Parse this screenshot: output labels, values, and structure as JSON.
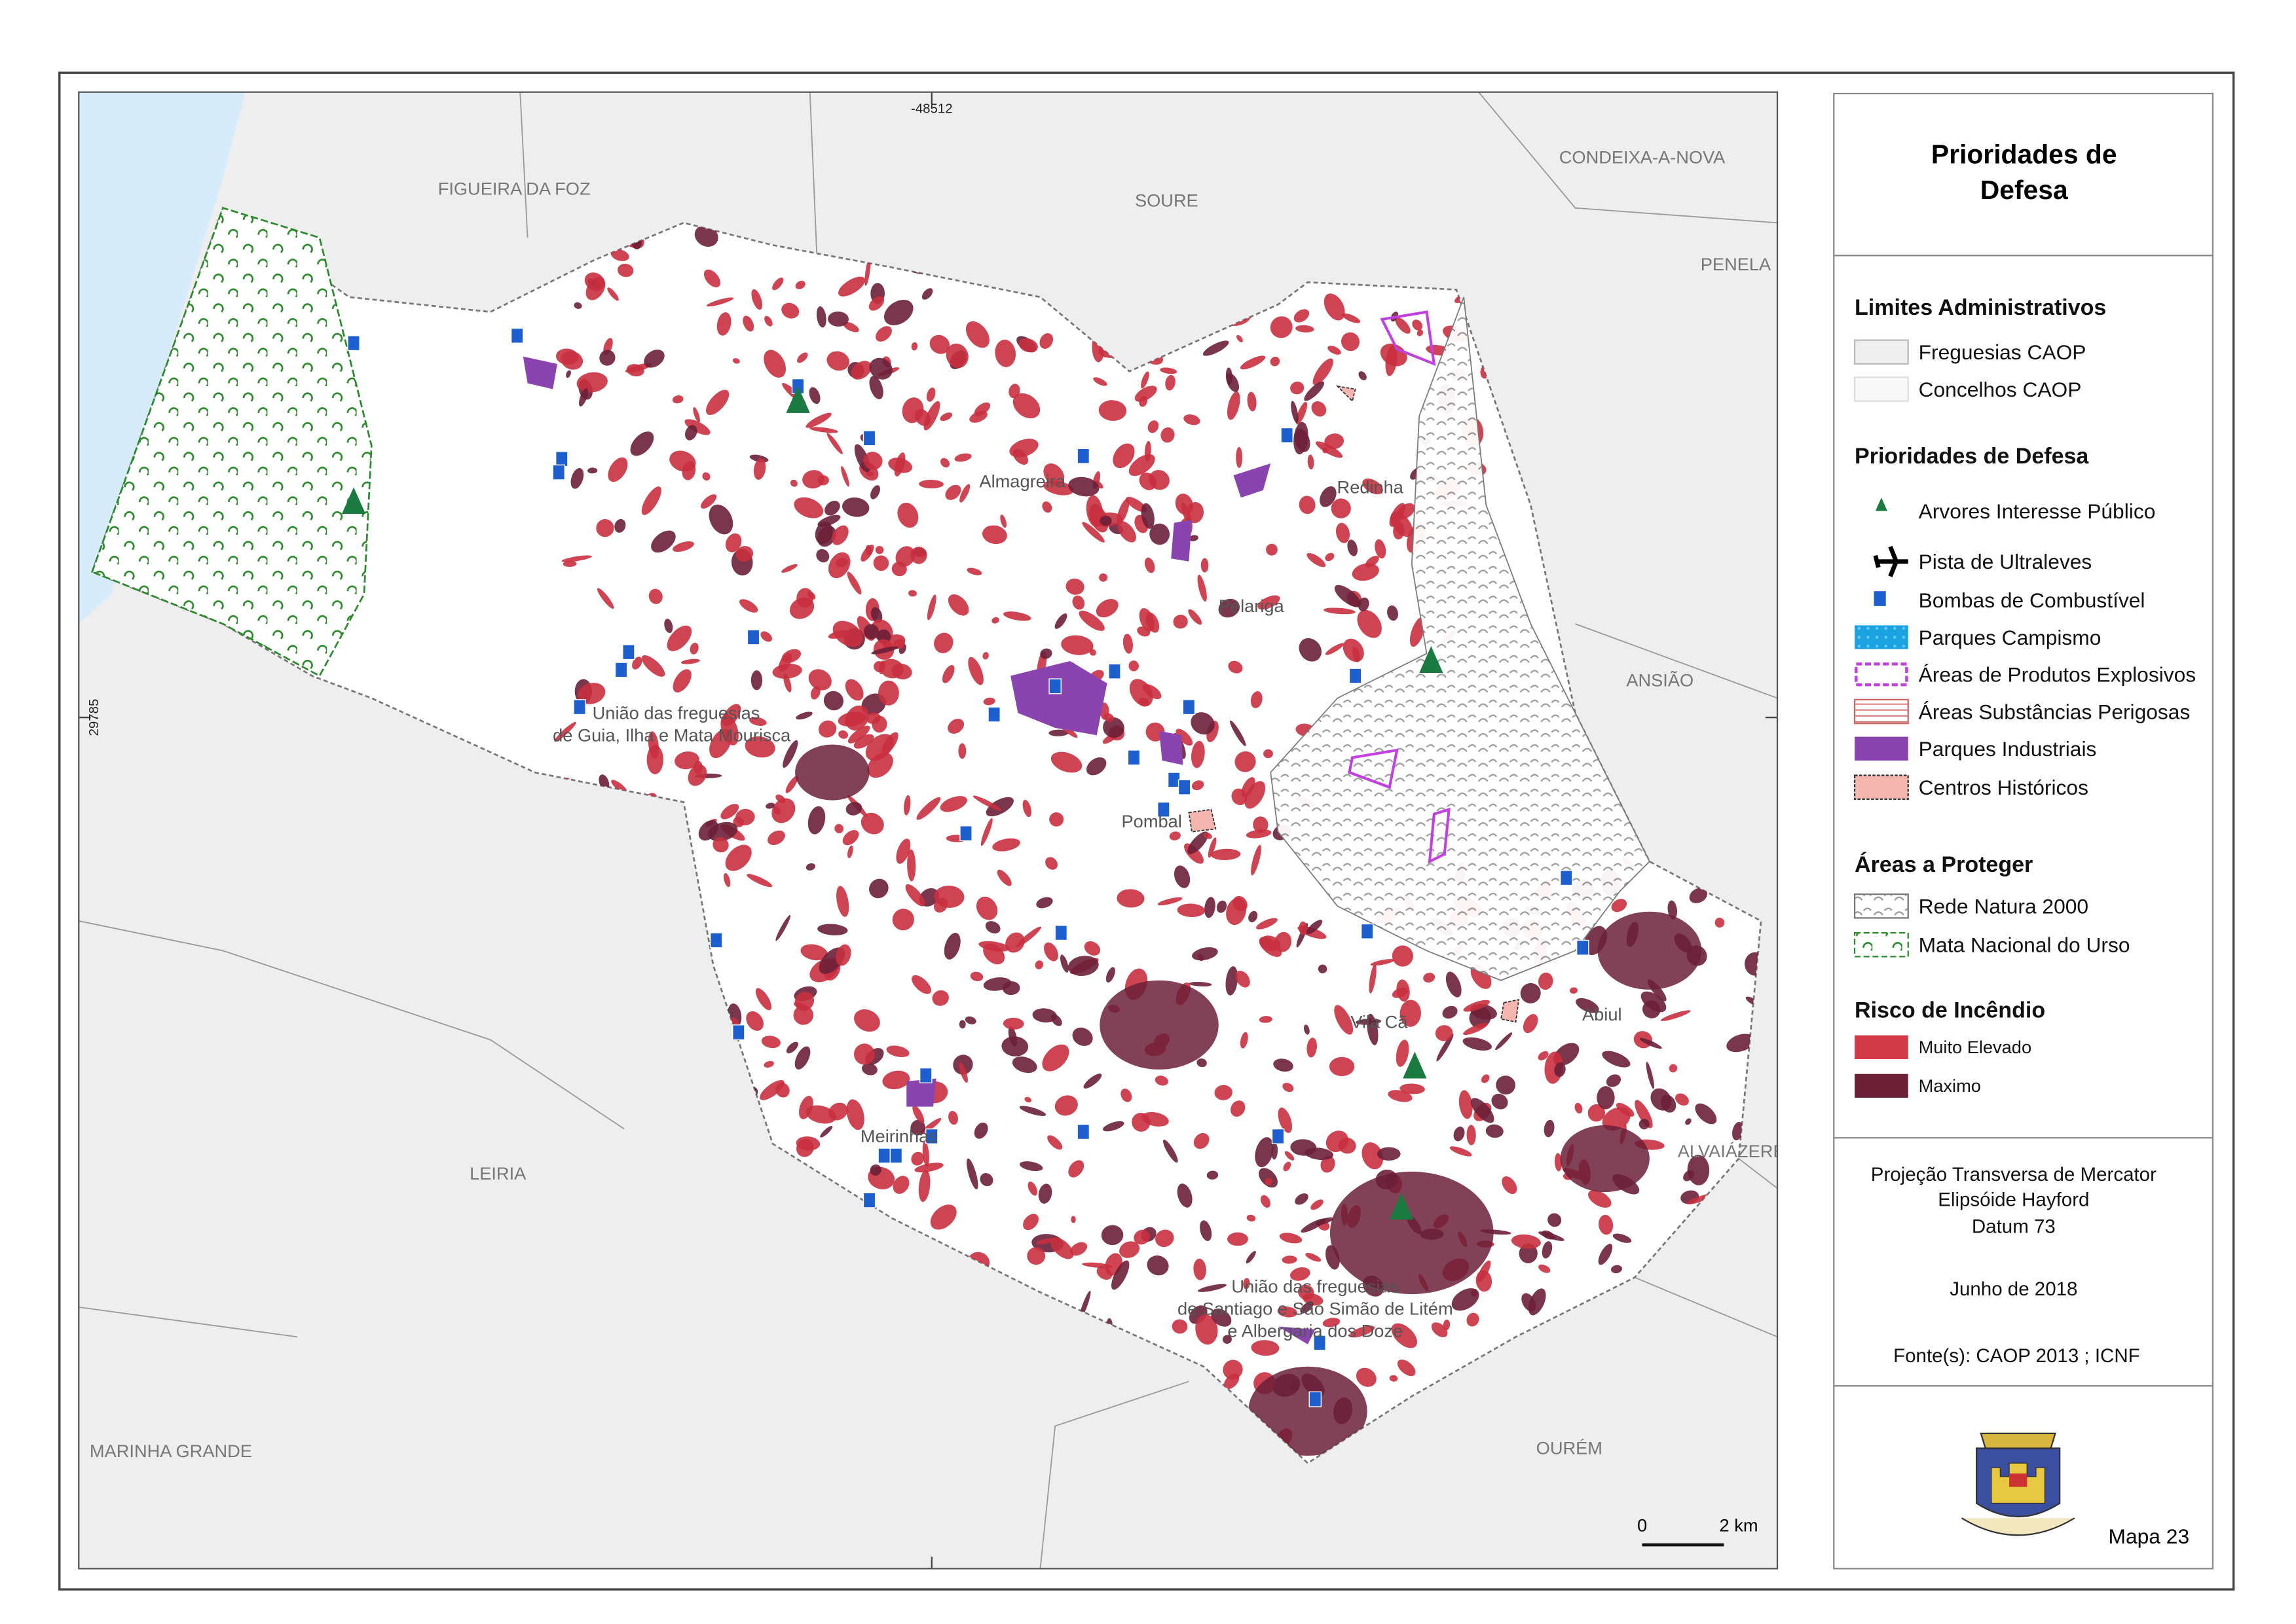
{
  "map": {
    "coord_labels": [
      "-48512",
      "29785"
    ],
    "neighbours": [
      "FIGUEIRA DA FOZ",
      "SOURE",
      "CONDEIXA-A-NOVA",
      "PENELA",
      "ANSIÃO",
      "LEIRIA",
      "MARINHA GRANDE",
      "OURÉM",
      "ALVAIÁZERE"
    ],
    "parishes": [
      "Redinha",
      "Almagreira",
      "Pelariga",
      "Pombal",
      "Vila Cã",
      "Meirinhas",
      "Abiul"
    ],
    "union_guia": [
      "União das freguesias",
      "de Guia, Ilha e Mata Mourisca"
    ],
    "union_santiago": [
      "União das freguesias",
      "de Santiago e São Simão de Litém",
      "e Albergaria dos Doze"
    ]
  },
  "legend": {
    "title_lines": [
      "Prioridades de",
      "Defesa"
    ],
    "sections": [
      {
        "title": "Limites Administrativos",
        "items": [
          "Freguesias CAOP",
          "Concelhos CAOP"
        ]
      },
      {
        "title": "Prioridades de Defesa",
        "items": [
          "Arvores Interesse Público",
          "Pista de Ultraleves",
          "Bombas de Combustível",
          "Parques Campismo",
          "Áreas de Produtos Explosivos",
          "Áreas Substâncias Perigosas",
          "Parques Industriais",
          "Centros Históricos"
        ]
      },
      {
        "title": "Áreas a Proteger",
        "items": [
          "Rede Natura 2000",
          "Mata Nacional do Urso"
        ]
      },
      {
        "title": "Risco de Incêndio",
        "items": [
          "Muito Elevado",
          "Maximo"
        ]
      }
    ]
  },
  "info": {
    "projection": [
      "Projeção Transversa de Mercator",
      "Elipsóide Hayford",
      "Datum 73"
    ],
    "date": "Junho de 2018",
    "sources": "Fonte(s): CAOP 2013 ; ICNF"
  },
  "scale_bar": [
    "0",
    "2 km"
  ],
  "map_number": "Mapa 23"
}
